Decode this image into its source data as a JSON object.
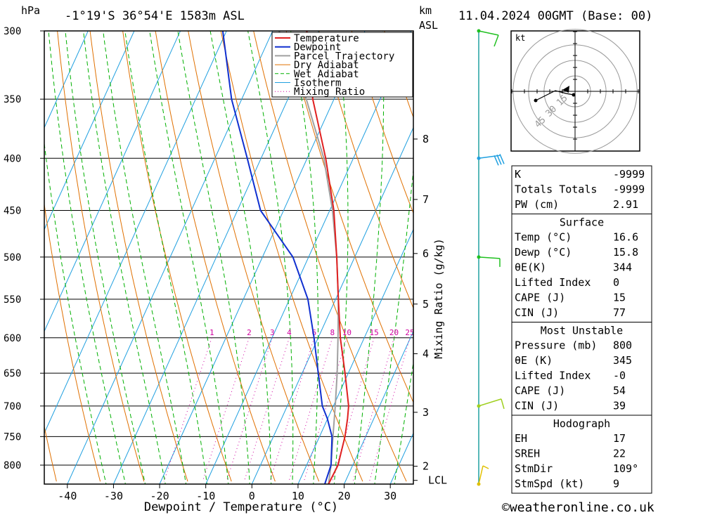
{
  "header": {
    "location": "-1°19'S  36°54'E  1583m  ASL",
    "date": "11.04.2024  00GMT  (Base: 00)",
    "hpa_label": "hPa",
    "km_label": "km",
    "asl_label": "ASL"
  },
  "footer": {
    "copyright": "©weatheronline.co.uk"
  },
  "chart_data": {
    "type": "skew-t",
    "xlabel": "Dewpoint / Temperature (°C)",
    "ylabel_right": "Mixing Ratio (g/kg)",
    "pressure_levels": [
      300,
      350,
      400,
      450,
      500,
      550,
      600,
      650,
      700,
      750,
      800
    ],
    "pressure_range": [
      300,
      835
    ],
    "temp_ticks": [
      -40,
      -30,
      -20,
      -10,
      0,
      10,
      20,
      30
    ],
    "temp_range_bottom": [
      -45,
      35
    ],
    "km_ticks": [
      {
        "label": "8",
        "p": 383
      },
      {
        "label": "7",
        "p": 439
      },
      {
        "label": "6",
        "p": 496
      },
      {
        "label": "5",
        "p": 556
      },
      {
        "label": "4",
        "p": 622
      },
      {
        "label": "3",
        "p": 710
      },
      {
        "label": "2",
        "p": 802
      },
      {
        "label": "LCL",
        "p": 828
      }
    ],
    "mixing_ratio_labels": [
      "1",
      "2",
      "3",
      "4",
      "6",
      "8",
      "10",
      "15",
      "20",
      "25"
    ],
    "mixing_ratio_values": [
      1,
      2,
      3,
      4,
      6,
      8,
      10,
      15,
      20,
      25
    ],
    "legend": [
      "Temperature",
      "Dewpoint",
      "Parcel Trajectory",
      "Dry Adiabat",
      "Wet Adiabat",
      "Isotherm",
      "Mixing Ratio"
    ],
    "colors": {
      "temperature": "#e02020",
      "dewpoint": "#1030d0",
      "parcel": "#a0a0a0",
      "dry_adiabat": "#e07000",
      "wet_adiabat": "#00b000",
      "isotherm": "#20a0e0",
      "mixing_ratio": "#d000a0"
    },
    "temperature": [
      {
        "p": 835,
        "t": 16.6
      },
      {
        "p": 800,
        "t": 16.8
      },
      {
        "p": 750,
        "t": 15.5
      },
      {
        "p": 720,
        "t": 14.3
      },
      {
        "p": 700,
        "t": 13.3
      },
      {
        "p": 650,
        "t": 9.3
      },
      {
        "p": 600,
        "t": 4.8
      },
      {
        "p": 550,
        "t": 0.6
      },
      {
        "p": 500,
        "t": -3.9
      },
      {
        "p": 450,
        "t": -9.1
      },
      {
        "p": 400,
        "t": -16.0
      },
      {
        "p": 350,
        "t": -24.6
      },
      {
        "p": 300,
        "t": -32.6
      }
    ],
    "dewpoint": [
      {
        "p": 835,
        "t": 15.8
      },
      {
        "p": 800,
        "t": 15.3
      },
      {
        "p": 750,
        "t": 12.7
      },
      {
        "p": 720,
        "t": 9.9
      },
      {
        "p": 700,
        "t": 7.6
      },
      {
        "p": 650,
        "t": 3.5
      },
      {
        "p": 600,
        "t": -0.9
      },
      {
        "p": 550,
        "t": -6.0
      },
      {
        "p": 500,
        "t": -13.4
      },
      {
        "p": 450,
        "t": -25.0
      },
      {
        "p": 400,
        "t": -33.0
      },
      {
        "p": 350,
        "t": -42.2
      },
      {
        "p": 300,
        "t": -50.8
      }
    ],
    "parcel": [
      {
        "p": 835,
        "t": 16.6
      },
      {
        "p": 800,
        "t": 15.3
      },
      {
        "p": 750,
        "t": 12.9
      },
      {
        "p": 700,
        "t": 10.4
      },
      {
        "p": 650,
        "t": 7.6
      },
      {
        "p": 600,
        "t": 4.3
      },
      {
        "p": 550,
        "t": 0.6
      },
      {
        "p": 500,
        "t": -3.9
      },
      {
        "p": 450,
        "t": -9.4
      },
      {
        "p": 400,
        "t": -16.4
      },
      {
        "p": 350,
        "t": -26.0
      },
      {
        "p": 300,
        "t": -38.6
      }
    ],
    "hodograph": {
      "unit_label": "kt",
      "ring_labels": [
        "15",
        "30",
        "45"
      ],
      "ring_values": [
        15,
        30,
        45
      ]
    }
  },
  "indices": {
    "rows": [
      {
        "k": "K",
        "v": "-9999"
      },
      {
        "k": "Totals Totals",
        "v": "-9999"
      },
      {
        "k": "PW (cm)",
        "v": "2.91"
      }
    ]
  },
  "surface": {
    "title": "Surface",
    "rows": [
      {
        "k": "Temp (°C)",
        "v": "16.6"
      },
      {
        "k": "Dewp (°C)",
        "v": "15.8"
      },
      {
        "k": "θE(K)",
        "v": "344"
      },
      {
        "k": "Lifted Index",
        "v": "0"
      },
      {
        "k": "CAPE (J)",
        "v": "15"
      },
      {
        "k": "CIN (J)",
        "v": "77"
      }
    ]
  },
  "most_unstable": {
    "title": "Most Unstable",
    "rows": [
      {
        "k": "Pressure (mb)",
        "v": "800"
      },
      {
        "k": "θE (K)",
        "v": "345"
      },
      {
        "k": "Lifted Index",
        "v": "-0"
      },
      {
        "k": "CAPE (J)",
        "v": "54"
      },
      {
        "k": "CIN (J)",
        "v": "39"
      }
    ]
  },
  "hodograph_table": {
    "title": "Hodograph",
    "rows": [
      {
        "k": "EH",
        "v": "17"
      },
      {
        "k": "SREH",
        "v": "22"
      },
      {
        "k": "StmDir",
        "v": "109°"
      },
      {
        "k": "StmSpd (kt)",
        "v": "9"
      }
    ]
  }
}
